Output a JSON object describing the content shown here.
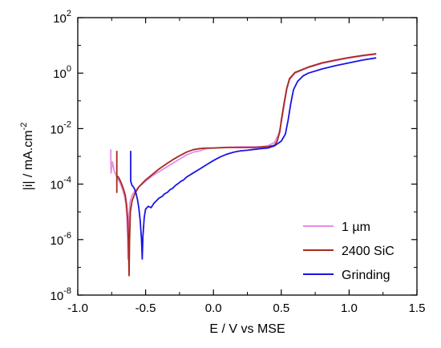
{
  "chart_data": {
    "type": "line",
    "xlabel": "E / V vs MSE",
    "ylabel_main": "|i| / mA.cm",
    "ylabel_exp": "-2",
    "xlim": [
      -1.0,
      1.5
    ],
    "ylim_log10": [
      -8,
      2
    ],
    "y_scale": "log",
    "x_ticks": [
      -1.0,
      -0.5,
      0.0,
      0.5,
      1.0,
      1.5
    ],
    "x_tick_labels": [
      "-1.0",
      "-0.5",
      "0.0",
      "0.5",
      "1.0",
      "1.5"
    ],
    "y_ticks": [
      -8,
      -6,
      -4,
      -2,
      0,
      2
    ],
    "y_tick_base": "10",
    "y_tick_exps": [
      "-8",
      "-6",
      "-4",
      "-2",
      "0",
      "2"
    ],
    "grid": false,
    "legend_position": "bottom-right",
    "series": [
      {
        "name": "1 µm",
        "color": "#e68ce6",
        "points": [
          [
            -0.757,
            -2.75
          ],
          [
            -0.755,
            -3.6
          ],
          [
            -0.745,
            -3.2
          ],
          [
            -0.73,
            -3.55
          ],
          [
            -0.715,
            -3.7
          ],
          [
            -0.7,
            -3.85
          ],
          [
            -0.685,
            -4.0
          ],
          [
            -0.67,
            -4.2
          ],
          [
            -0.655,
            -4.45
          ],
          [
            -0.645,
            -4.75
          ],
          [
            -0.638,
            -5.2
          ],
          [
            -0.633,
            -5.9
          ],
          [
            -0.63,
            -6.7
          ],
          [
            -0.627,
            -5.9
          ],
          [
            -0.622,
            -5.1
          ],
          [
            -0.615,
            -4.65
          ],
          [
            -0.6,
            -4.4
          ],
          [
            -0.58,
            -4.25
          ],
          [
            -0.55,
            -4.1
          ],
          [
            -0.5,
            -3.9
          ],
          [
            -0.45,
            -3.7
          ],
          [
            -0.4,
            -3.55
          ],
          [
            -0.35,
            -3.4
          ],
          [
            -0.3,
            -3.25
          ],
          [
            -0.25,
            -3.1
          ],
          [
            -0.2,
            -2.95
          ],
          [
            -0.15,
            -2.85
          ],
          [
            -0.1,
            -2.8
          ],
          [
            -0.05,
            -2.72
          ],
          [
            0.0,
            -2.7
          ],
          [
            0.1,
            -2.67
          ],
          [
            0.2,
            -2.66
          ],
          [
            0.3,
            -2.66
          ],
          [
            0.35,
            -2.65
          ],
          [
            0.4,
            -2.62
          ],
          [
            0.45,
            -2.5
          ],
          [
            0.48,
            -2.2
          ],
          [
            0.5,
            -1.8
          ],
          [
            0.52,
            -1.2
          ],
          [
            0.54,
            -0.6
          ],
          [
            0.56,
            -0.25
          ],
          [
            0.6,
            0.0
          ],
          [
            0.7,
            0.2
          ],
          [
            0.8,
            0.35
          ],
          [
            0.9,
            0.45
          ],
          [
            1.0,
            0.55
          ],
          [
            1.1,
            0.62
          ],
          [
            1.2,
            0.68
          ]
        ]
      },
      {
        "name": "2400 SiC",
        "color": "#a52a1e",
        "points": [
          [
            -0.712,
            -2.8
          ],
          [
            -0.712,
            -3.95
          ],
          [
            -0.712,
            -4.3
          ],
          [
            -0.712,
            -3.7
          ],
          [
            -0.7,
            -3.75
          ],
          [
            -0.68,
            -3.95
          ],
          [
            -0.665,
            -4.15
          ],
          [
            -0.65,
            -4.4
          ],
          [
            -0.64,
            -4.75
          ],
          [
            -0.632,
            -5.3
          ],
          [
            -0.627,
            -6.0
          ],
          [
            -0.622,
            -7.3
          ],
          [
            -0.618,
            -6.0
          ],
          [
            -0.612,
            -5.0
          ],
          [
            -0.6,
            -4.6
          ],
          [
            -0.58,
            -4.35
          ],
          [
            -0.55,
            -4.1
          ],
          [
            -0.5,
            -3.85
          ],
          [
            -0.45,
            -3.65
          ],
          [
            -0.4,
            -3.45
          ],
          [
            -0.35,
            -3.28
          ],
          [
            -0.3,
            -3.12
          ],
          [
            -0.25,
            -2.98
          ],
          [
            -0.2,
            -2.85
          ],
          [
            -0.15,
            -2.76
          ],
          [
            -0.1,
            -2.72
          ],
          [
            -0.05,
            -2.7
          ],
          [
            0.0,
            -2.7
          ],
          [
            0.1,
            -2.68
          ],
          [
            0.2,
            -2.68
          ],
          [
            0.3,
            -2.68
          ],
          [
            0.4,
            -2.65
          ],
          [
            0.45,
            -2.6
          ],
          [
            0.47,
            -2.45
          ],
          [
            0.49,
            -2.1
          ],
          [
            0.5,
            -1.7
          ],
          [
            0.52,
            -1.1
          ],
          [
            0.54,
            -0.55
          ],
          [
            0.56,
            -0.2
          ],
          [
            0.6,
            0.02
          ],
          [
            0.7,
            0.22
          ],
          [
            0.8,
            0.37
          ],
          [
            0.9,
            0.47
          ],
          [
            1.0,
            0.56
          ],
          [
            1.1,
            0.64
          ],
          [
            1.2,
            0.7
          ]
        ]
      },
      {
        "name": "Grinding",
        "color": "#1a14e6",
        "points": [
          [
            -0.61,
            -2.8
          ],
          [
            -0.61,
            -3.3
          ],
          [
            -0.61,
            -3.9
          ],
          [
            -0.6,
            -4.05
          ],
          [
            -0.59,
            -4.1
          ],
          [
            -0.58,
            -4.2
          ],
          [
            -0.57,
            -4.35
          ],
          [
            -0.56,
            -4.55
          ],
          [
            -0.55,
            -4.85
          ],
          [
            -0.54,
            -5.3
          ],
          [
            -0.53,
            -6.0
          ],
          [
            -0.525,
            -6.7
          ],
          [
            -0.52,
            -5.9
          ],
          [
            -0.51,
            -5.2
          ],
          [
            -0.5,
            -4.9
          ],
          [
            -0.48,
            -4.8
          ],
          [
            -0.46,
            -4.85
          ],
          [
            -0.44,
            -4.7
          ],
          [
            -0.42,
            -4.6
          ],
          [
            -0.4,
            -4.5
          ],
          [
            -0.38,
            -4.45
          ],
          [
            -0.36,
            -4.35
          ],
          [
            -0.34,
            -4.3
          ],
          [
            -0.32,
            -4.2
          ],
          [
            -0.3,
            -4.15
          ],
          [
            -0.28,
            -4.05
          ],
          [
            -0.26,
            -3.98
          ],
          [
            -0.24,
            -3.9
          ],
          [
            -0.22,
            -3.85
          ],
          [
            -0.2,
            -3.75
          ],
          [
            -0.15,
            -3.6
          ],
          [
            -0.1,
            -3.45
          ],
          [
            -0.05,
            -3.3
          ],
          [
            0.0,
            -3.15
          ],
          [
            0.05,
            -3.02
          ],
          [
            0.1,
            -2.92
          ],
          [
            0.15,
            -2.85
          ],
          [
            0.2,
            -2.8
          ],
          [
            0.25,
            -2.78
          ],
          [
            0.3,
            -2.75
          ],
          [
            0.35,
            -2.72
          ],
          [
            0.4,
            -2.7
          ],
          [
            0.45,
            -2.62
          ],
          [
            0.5,
            -2.45
          ],
          [
            0.53,
            -2.2
          ],
          [
            0.55,
            -1.7
          ],
          [
            0.57,
            -1.1
          ],
          [
            0.59,
            -0.6
          ],
          [
            0.62,
            -0.3
          ],
          [
            0.66,
            -0.1
          ],
          [
            0.7,
            0.0
          ],
          [
            0.8,
            0.15
          ],
          [
            0.9,
            0.27
          ],
          [
            1.0,
            0.37
          ],
          [
            1.1,
            0.47
          ],
          [
            1.2,
            0.55
          ]
        ]
      }
    ]
  }
}
